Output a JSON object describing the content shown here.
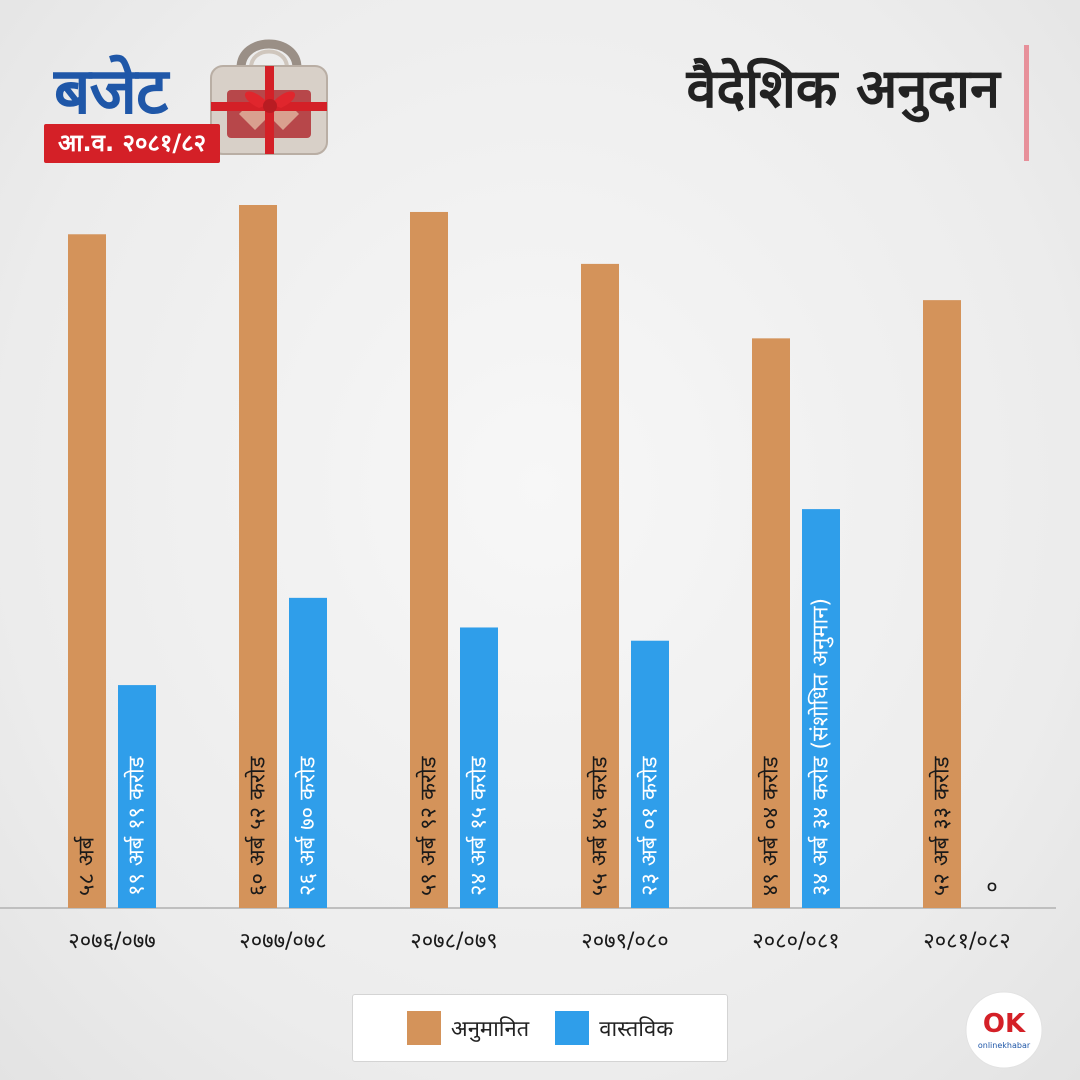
{
  "header": {
    "logo_word": "बजेट",
    "logo_year": "आ.व. २०८१/८२",
    "title": "वैदेशिक अनुदान"
  },
  "colors": {
    "estimated": "#d4935a",
    "actual": "#2f9eea",
    "axis": "#bfbfbf",
    "logo_blue": "#1f57a8",
    "logo_red": "#d42027"
  },
  "chart_data": {
    "type": "bar",
    "categories": [
      "२०७६/०७७",
      "२०७७/०७८",
      "२०७८/०७९",
      "२०७९/०८०",
      "२०८०/०८१",
      "२०८१/०८२"
    ],
    "series": [
      {
        "name": "अनुमानित",
        "values": [
          58,
          60.52,
          59.92,
          55.45,
          49.04,
          52.33
        ],
        "labels": [
          "५८ अर्ब",
          "६० अर्ब ५२ करोड",
          "५९ अर्ब ९२ करोड",
          "५५ अर्ब ४५ करोड",
          "४९ अर्ब ०४ करोड",
          "५२ अर्ब ३३ करोड"
        ]
      },
      {
        "name": "वास्तविक",
        "values": [
          19.19,
          26.7,
          24.15,
          23.01,
          34.34,
          0
        ],
        "labels": [
          "१९ अर्ब १९ करोड",
          "२६ अर्ब ७० करोड",
          "२४ अर्ब १५ करोड",
          "२३ अर्ब ०१ करोड",
          "३४ अर्ब ३४ करोड (संशोधित अनुमान)",
          "०"
        ]
      }
    ],
    "unit": "अर्ब",
    "ylim": [
      0,
      60.52
    ],
    "legend_position": "bottom-center",
    "grid": false
  },
  "legend": {
    "estimated_label": "अनुमानित",
    "actual_label": "वास्तविक"
  },
  "brand": {
    "mark": "OK",
    "name": "onlinekhabar"
  }
}
